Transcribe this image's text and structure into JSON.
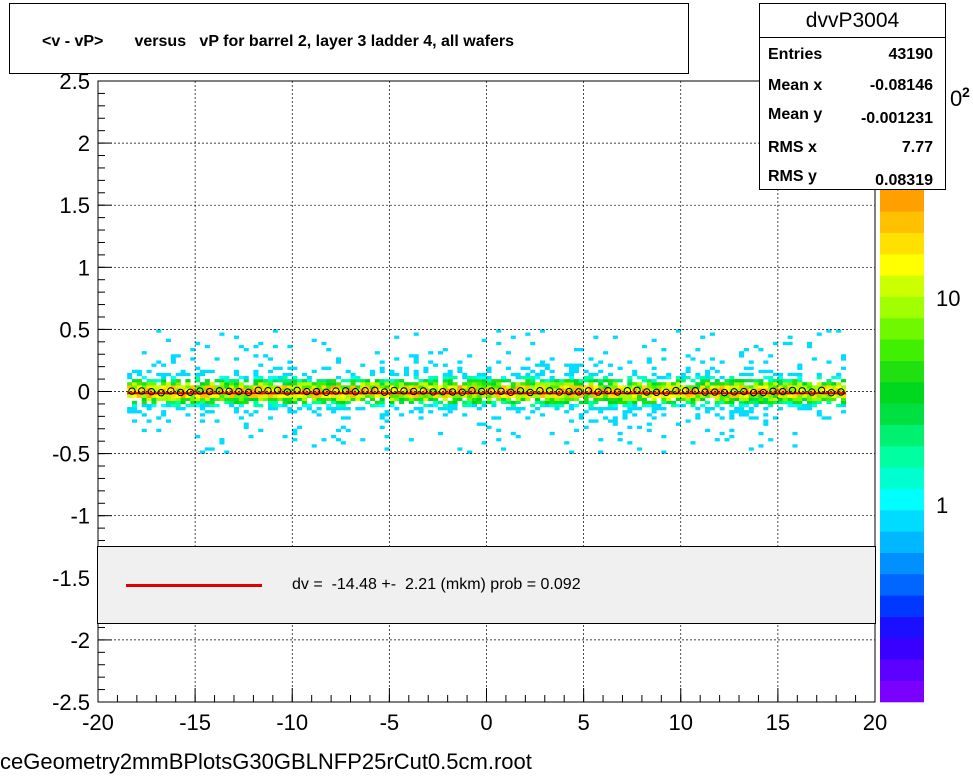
{
  "title": "<v - vP>       versus   vP for barrel 2, layer 3 ladder 4, all wafers",
  "stats": {
    "name": "dvvP3004",
    "rows": [
      {
        "label": "Entries",
        "value": "43190"
      },
      {
        "label": "Mean x",
        "value": "-0.08146"
      },
      {
        "label": "Mean y",
        "value": "-0.001231"
      },
      {
        "label": "RMS x",
        "value": "7.77"
      },
      {
        "label": "RMS y",
        "value": "0.08319"
      }
    ]
  },
  "fit": {
    "text": "dv =  -14.48 +-  2.21 (mkm) prob = 0.092",
    "line_color": "#e00000"
  },
  "footer": "ceGeometry2mmBPlotsG30GBLNFP25rCut0.5cm.root",
  "colorbar": {
    "labels": [
      "1",
      "10"
    ],
    "exponent_base": "0",
    "exponent_power": "2",
    "colors": [
      "#7a00ff",
      "#5c00ff",
      "#3a00ff",
      "#1a10ff",
      "#0038ff",
      "#0066ff",
      "#0090ff",
      "#00b8ff",
      "#00dcff",
      "#00ffff",
      "#00ffd0",
      "#00ffa0",
      "#00f070",
      "#00e040",
      "#00d820",
      "#20e010",
      "#40f000",
      "#70f800",
      "#a0ff00",
      "#ccff00",
      "#ffff00",
      "#ffe000",
      "#ffc000",
      "#ffa000"
    ]
  },
  "chart_data": {
    "type": "heatmap",
    "title": "<v - vP>       versus   vP for barrel 2, layer 3 ladder 4, all wafers",
    "xlim": [
      -20,
      20
    ],
    "ylim": [
      -2.5,
      2.5
    ],
    "x_ticks": [
      -20,
      -15,
      -10,
      -5,
      0,
      5,
      10,
      15,
      20
    ],
    "y_ticks": [
      -2.5,
      -2,
      -1.5,
      -1,
      -0.5,
      0,
      0.5,
      1,
      1.5,
      2,
      2.5
    ],
    "x_tick_labels": [
      "-20",
      "-15",
      "-10",
      "-5",
      "0",
      "5",
      "10",
      "15",
      "20"
    ],
    "y_tick_labels": [
      "-2.5",
      "-2",
      "-1.5",
      "-1",
      "-0.5",
      "0",
      "0.5",
      "1",
      "1.5",
      "2",
      "2.5"
    ],
    "grid": true,
    "z_scale": "log",
    "x_range_of_data": [
      -18.5,
      18.5
    ],
    "band_profile": [
      {
        "y": 0.0,
        "level": "high"
      },
      {
        "y": 0.05,
        "level": "medium"
      },
      {
        "y": -0.05,
        "level": "medium"
      },
      {
        "y": 0.15,
        "level": "low"
      },
      {
        "y": -0.15,
        "level": "low"
      },
      {
        "y": 0.3,
        "level": "sparse"
      },
      {
        "y": -0.3,
        "level": "sparse"
      },
      {
        "y": 0.45,
        "level": "very-sparse"
      },
      {
        "y": -0.45,
        "level": "very-sparse"
      }
    ],
    "profile_points_y": 0.0,
    "profile_x_step": 0.5,
    "fit_line_y": -0.0145
  }
}
